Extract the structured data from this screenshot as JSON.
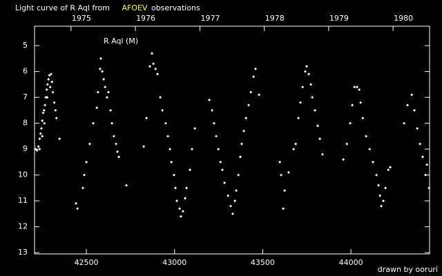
{
  "chart_data": {
    "type": "scatter",
    "title": "Light curve of R Aql from",
    "title_source": "AFOEV",
    "title_suffix": "observations",
    "annotation": "R Aql (M)",
    "credit": "drawn by ooruri",
    "color": "#ffffff",
    "source_color": "#ffff33",
    "credit_color": "#33ccff",
    "xlim": [
      42206,
      44446
    ],
    "ylim": [
      13.05,
      4.25
    ],
    "xticks": [
      42500,
      43000,
      43500,
      44000
    ],
    "x2ticks": [
      {
        "value": 42413,
        "label": "1975"
      },
      {
        "value": 42778,
        "label": "1976"
      },
      {
        "value": 43144,
        "label": "1977"
      },
      {
        "value": 43509,
        "label": "1978"
      },
      {
        "value": 43874,
        "label": "1979"
      },
      {
        "value": 44239,
        "label": "1980"
      }
    ],
    "yticks": [
      5,
      6,
      7,
      8,
      9,
      10,
      11,
      12,
      13
    ],
    "x": [
      42212,
      42220,
      42228,
      42235,
      42240,
      42245,
      42250,
      42255,
      42260,
      42265,
      42270,
      42275,
      42280,
      42285,
      42290,
      42300,
      42305,
      42310,
      42318,
      42325,
      42330,
      42348,
      42235,
      42250,
      42262,
      42278,
      42295,
      42441,
      42449,
      42480,
      42488,
      42500,
      42519,
      42539,
      42559,
      42566,
      42578,
      42582,
      42590,
      42598,
      42606,
      42617,
      42625,
      42637,
      42645,
      42656,
      42668,
      42676,
      42684,
      42727,
      42825,
      42841,
      42860,
      42872,
      42880,
      42892,
      42903,
      42919,
      42931,
      42950,
      42962,
      42974,
      42982,
      42997,
      43005,
      43013,
      43029,
      43036,
      43048,
      43060,
      43068,
      43087,
      43099,
      43115,
      43197,
      43213,
      43224,
      43236,
      43248,
      43260,
      43271,
      43283,
      43303,
      43318,
      43330,
      43342,
      43350,
      43362,
      43373,
      43381,
      43393,
      43405,
      43420,
      43432,
      43448,
      43459,
      43479,
      43597,
      43604,
      43616,
      43624,
      43647,
      43675,
      43687,
      43702,
      43714,
      43726,
      43741,
      43749,
      43761,
      43773,
      43781,
      43796,
      43812,
      43824,
      43839,
      43957,
      43977,
      43996,
      44008,
      44020,
      44035,
      44047,
      44055,
      44067,
      44086,
      44106,
      44125,
      44145,
      44157,
      44165,
      44172,
      44184,
      44196,
      44212,
      44223,
      44302,
      44321,
      44345,
      44360,
      44376,
      44392,
      44407,
      44423,
      44431,
      44443
    ],
    "values": [
      9.0,
      9.05,
      8.9,
      8.6,
      8.4,
      8.2,
      7.9,
      7.6,
      7.5,
      7.3,
      7.0,
      6.7,
      6.5,
      6.3,
      6.15,
      6.1,
      6.4,
      6.8,
      7.2,
      7.5,
      7.8,
      8.6,
      9.0,
      8.5,
      8.0,
      7.0,
      6.6,
      11.1,
      11.3,
      10.5,
      10.0,
      9.5,
      8.8,
      8.0,
      7.4,
      6.8,
      5.9,
      5.5,
      6.0,
      6.3,
      6.6,
      7.0,
      6.8,
      7.5,
      8.0,
      8.5,
      8.8,
      9.1,
      9.3,
      10.4,
      8.9,
      7.8,
      5.8,
      5.3,
      5.7,
      5.9,
      6.1,
      7.0,
      7.5,
      8.0,
      8.5,
      9.0,
      9.5,
      10.0,
      10.5,
      11.0,
      11.3,
      11.6,
      11.4,
      10.9,
      10.5,
      9.8,
      9.0,
      8.2,
      7.1,
      7.5,
      8.0,
      8.5,
      9.0,
      9.5,
      9.8,
      10.3,
      10.8,
      11.2,
      11.5,
      11.0,
      10.6,
      10.0,
      9.3,
      8.8,
      8.3,
      7.8,
      7.3,
      6.8,
      6.2,
      5.9,
      6.9,
      9.5,
      10.0,
      11.3,
      10.6,
      9.9,
      9.0,
      8.8,
      7.8,
      7.2,
      6.6,
      6.0,
      5.8,
      6.1,
      6.5,
      7.0,
      7.5,
      8.1,
      8.6,
      9.2,
      9.4,
      8.8,
      8.0,
      7.3,
      6.6,
      6.6,
      6.7,
      7.2,
      7.8,
      8.5,
      9.0,
      9.5,
      10.0,
      10.4,
      10.8,
      11.2,
      11.0,
      10.5,
      9.8,
      9.7,
      8.0,
      7.3,
      6.9,
      7.5,
      8.2,
      8.8,
      9.3,
      10.0,
      9.6,
      10.5
    ]
  }
}
